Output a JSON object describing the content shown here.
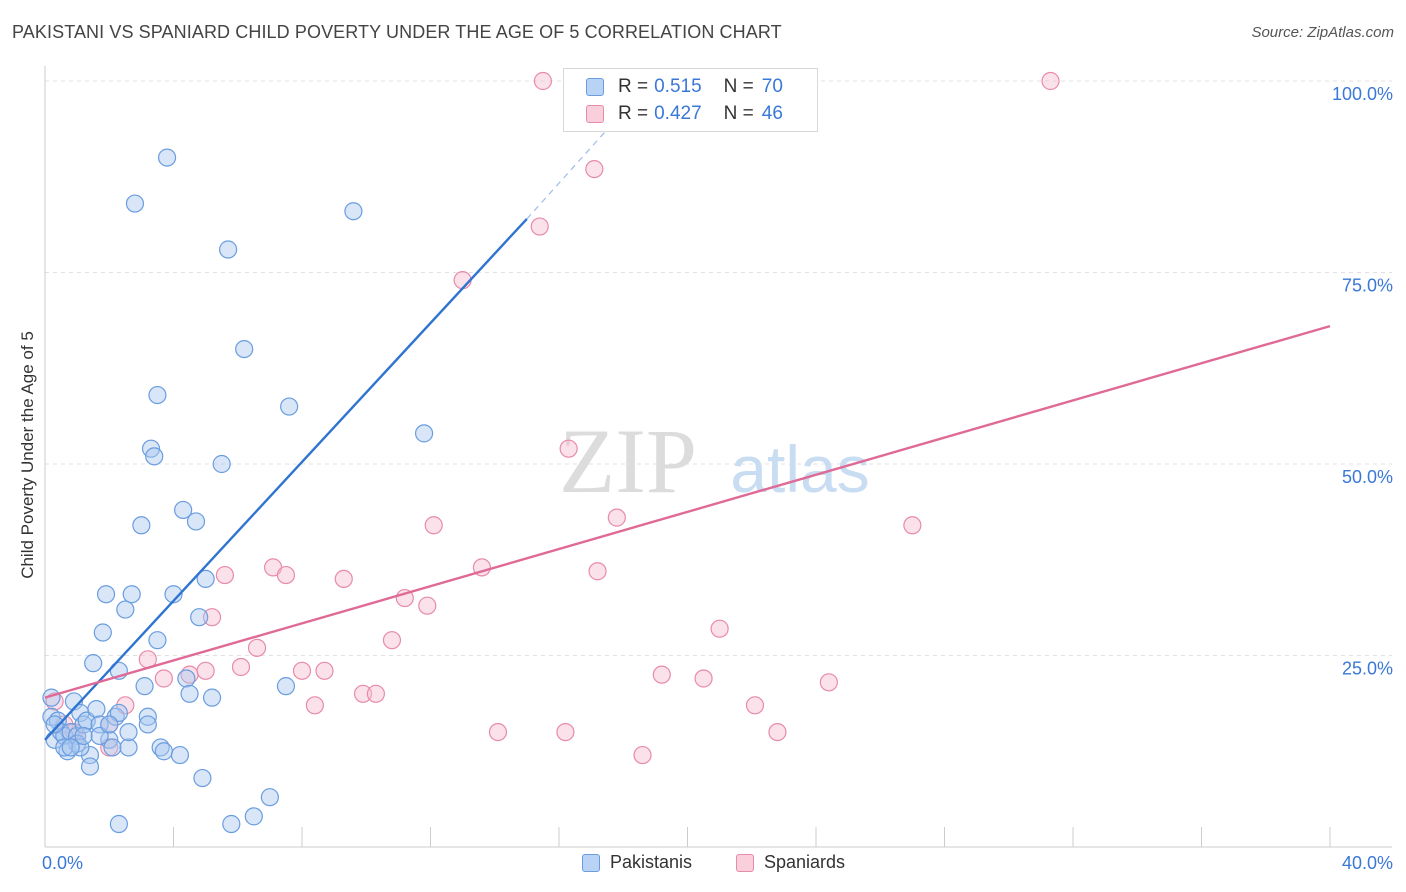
{
  "title": "PAKISTANI VS SPANIARD CHILD POVERTY UNDER THE AGE OF 5 CORRELATION CHART",
  "source": "Source: ZipAtlas.com",
  "watermark": {
    "zip": "ZIP",
    "atlas": "atlas"
  },
  "colors": {
    "pakistani_fill": "#a8c8f0",
    "pakistani_stroke": "#6a9de0",
    "pakistani_line": "#2f74d0",
    "spaniard_fill": "#f6bfd0",
    "spaniard_stroke": "#e88aaa",
    "spaniard_line": "#e06a96",
    "axis_label": "#3a78d8",
    "grid": "#e0e0e0"
  },
  "legend": {
    "rows": [
      {
        "r_label": "R =",
        "r_value": "0.515",
        "n_label": "N =",
        "n_value": "70",
        "series": "pakistani"
      },
      {
        "r_label": "R =",
        "r_value": "0.427",
        "n_label": "N =",
        "n_value": "46",
        "series": "spaniard"
      }
    ]
  },
  "bottom_legend": {
    "pakistani": "Pakistanis",
    "spaniard": "Spaniards"
  },
  "chart_data": {
    "type": "scatter",
    "title": "PAKISTANI VS SPANIARD CHILD POVERTY UNDER THE AGE OF 5 CORRELATION CHART",
    "xlabel": "",
    "ylabel": "Child Poverty Under the Age of 5",
    "xlim": [
      0,
      40
    ],
    "ylim": [
      0,
      100
    ],
    "x_tick_labels": [
      "0.0%",
      "40.0%"
    ],
    "y_ticks": [
      25,
      50,
      75,
      100
    ],
    "y_tick_labels": [
      "25.0%",
      "50.0%",
      "75.0%",
      "100.0%"
    ],
    "grid": true,
    "series": [
      {
        "name": "Pakistanis",
        "key": "pakistani",
        "trend": {
          "x": [
            0,
            15
          ],
          "y": [
            14,
            82
          ],
          "dashed_to": [
            18,
            96
          ]
        },
        "points": [
          [
            0.2,
            19.5
          ],
          [
            0.2,
            17
          ],
          [
            0.3,
            14
          ],
          [
            0.4,
            16.5
          ],
          [
            0.5,
            15
          ],
          [
            0.6,
            14.5
          ],
          [
            0.7,
            12.5
          ],
          [
            0.8,
            15
          ],
          [
            0.9,
            19
          ],
          [
            1.0,
            14.5
          ],
          [
            1.0,
            13.5
          ],
          [
            1.1,
            17.5
          ],
          [
            1.2,
            16
          ],
          [
            1.3,
            16.5
          ],
          [
            1.4,
            12
          ],
          [
            1.5,
            24
          ],
          [
            1.6,
            18
          ],
          [
            1.7,
            16
          ],
          [
            1.8,
            28
          ],
          [
            1.9,
            33
          ],
          [
            2.0,
            14
          ],
          [
            2.1,
            13
          ],
          [
            2.2,
            17
          ],
          [
            2.3,
            17.5
          ],
          [
            2.3,
            23
          ],
          [
            2.5,
            31
          ],
          [
            2.6,
            13
          ],
          [
            2.7,
            33
          ],
          [
            2.8,
            84
          ],
          [
            3.0,
            42
          ],
          [
            3.1,
            21
          ],
          [
            3.2,
            17
          ],
          [
            3.3,
            52
          ],
          [
            3.4,
            51
          ],
          [
            3.5,
            59
          ],
          [
            3.5,
            27
          ],
          [
            3.6,
            13
          ],
          [
            3.7,
            12.5
          ],
          [
            3.8,
            90
          ],
          [
            4.0,
            33
          ],
          [
            4.2,
            12
          ],
          [
            4.3,
            44
          ],
          [
            4.4,
            22
          ],
          [
            4.5,
            20
          ],
          [
            4.7,
            42.5
          ],
          [
            4.8,
            30
          ],
          [
            4.9,
            9
          ],
          [
            5.0,
            35
          ],
          [
            5.2,
            19.5
          ],
          [
            5.5,
            50
          ],
          [
            5.7,
            78
          ],
          [
            5.8,
            3
          ],
          [
            6.2,
            65
          ],
          [
            6.5,
            4
          ],
          [
            7.0,
            6.5
          ],
          [
            7.5,
            21
          ],
          [
            7.6,
            57.5
          ],
          [
            9.6,
            83
          ],
          [
            11.8,
            54
          ],
          [
            0.3,
            16
          ],
          [
            0.6,
            13
          ],
          [
            1.1,
            13
          ],
          [
            1.4,
            10.5
          ],
          [
            1.7,
            14.5
          ],
          [
            2.0,
            16
          ],
          [
            2.6,
            15
          ],
          [
            3.2,
            16
          ],
          [
            0.8,
            13
          ],
          [
            1.2,
            14.5
          ],
          [
            2.3,
            3
          ]
        ]
      },
      {
        "name": "Spaniards",
        "key": "spaniard",
        "trend": {
          "x": [
            0,
            40
          ],
          "y": [
            19.5,
            68
          ]
        },
        "points": [
          [
            0.3,
            19
          ],
          [
            0.6,
            16
          ],
          [
            1.0,
            14.5
          ],
          [
            2.0,
            16
          ],
          [
            2.5,
            18.5
          ],
          [
            3.2,
            24.5
          ],
          [
            3.7,
            22
          ],
          [
            4.5,
            22.5
          ],
          [
            5.0,
            23
          ],
          [
            5.2,
            30
          ],
          [
            5.6,
            35.5
          ],
          [
            6.1,
            23.5
          ],
          [
            6.6,
            26
          ],
          [
            7.1,
            36.5
          ],
          [
            7.5,
            35.5
          ],
          [
            8.0,
            23
          ],
          [
            8.4,
            18.5
          ],
          [
            8.7,
            23
          ],
          [
            9.3,
            35
          ],
          [
            9.9,
            20
          ],
          [
            10.3,
            20
          ],
          [
            10.8,
            27
          ],
          [
            11.2,
            32.5
          ],
          [
            11.9,
            31.5
          ],
          [
            12.1,
            42
          ],
          [
            13.6,
            36.5
          ],
          [
            14.1,
            15
          ],
          [
            15.5,
            100
          ],
          [
            15.4,
            81
          ],
          [
            16.2,
            15
          ],
          [
            16.3,
            52
          ],
          [
            17.1,
            88.5
          ],
          [
            17.2,
            36
          ],
          [
            17.8,
            43
          ],
          [
            18.6,
            12
          ],
          [
            19.2,
            22.5
          ],
          [
            20.5,
            22
          ],
          [
            21.0,
            28.5
          ],
          [
            22.1,
            18.5
          ],
          [
            22.8,
            15
          ],
          [
            24.4,
            21.5
          ],
          [
            27.0,
            42
          ],
          [
            31.3,
            100
          ],
          [
            13.0,
            74
          ],
          [
            0.9,
            15
          ],
          [
            2.0,
            13
          ]
        ]
      }
    ]
  }
}
